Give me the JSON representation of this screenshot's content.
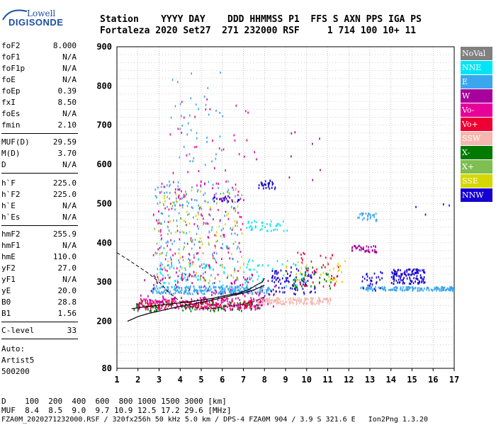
{
  "logo": {
    "top": "Lowell",
    "bottom": "DIGISONDE"
  },
  "header": {
    "labels": "Station    YYYY DAY    DDD HHMMSS P1  FFS S AXN PPS IGA PS",
    "values": "Fortaleza 2020 Set27  271 232000 RSF     1 714 100 10+ 11"
  },
  "params": [
    {
      "name": "foF2",
      "value": "8.000"
    },
    {
      "name": "foF1",
      "value": "N/A"
    },
    {
      "name": "foF1p",
      "value": "N/A"
    },
    {
      "name": "foE",
      "value": "N/A"
    },
    {
      "name": "foEp",
      "value": "0.39"
    },
    {
      "name": "fxI",
      "value": "8.50"
    },
    {
      "name": "foEs",
      "value": "N/A"
    },
    {
      "name": "fmin",
      "value": "2.10"
    },
    {
      "name": "MUF(D)",
      "value": "29.59"
    },
    {
      "name": "M(D)",
      "value": "3.70"
    },
    {
      "name": "D",
      "value": "N/A"
    },
    {
      "name": "h`F",
      "value": "225.0"
    },
    {
      "name": "h`F2",
      "value": "225.0"
    },
    {
      "name": "h`E",
      "value": "N/A"
    },
    {
      "name": "h`Es",
      "value": "N/A"
    },
    {
      "name": "hmF2",
      "value": "255.9"
    },
    {
      "name": "hmF1",
      "value": "N/A"
    },
    {
      "name": "hmE",
      "value": "110.0"
    },
    {
      "name": "yF2",
      "value": "27.0"
    },
    {
      "name": "yF1",
      "value": "N/A"
    },
    {
      "name": "yE",
      "value": "20.0"
    },
    {
      "name": "B0",
      "value": "28.8"
    },
    {
      "name": "B1",
      "value": "1.56"
    },
    {
      "name": "C-level",
      "value": "33"
    }
  ],
  "autoscaling": {
    "line1": "Auto:",
    "line2": "Artist5",
    "line3": "500200"
  },
  "legend": [
    {
      "label": "NoVal",
      "color": "#808080"
    },
    {
      "label": "NNE",
      "color": "#00e5f5"
    },
    {
      "label": "E",
      "color": "#3aa6ee"
    },
    {
      "label": "W",
      "color": "#a8009c"
    },
    {
      "label": "Vo-",
      "color": "#e8009a"
    },
    {
      "label": "Vo+",
      "color": "#ee0033"
    },
    {
      "label": "SSW",
      "color": "#f5b8b0"
    },
    {
      "label": "X-",
      "color": "#007a00"
    },
    {
      "label": "X+",
      "color": "#7fbe50"
    },
    {
      "label": "SSE",
      "color": "#d6d600"
    },
    {
      "label": "NNW",
      "color": "#1400d0"
    }
  ],
  "footer": {
    "distances": "D    100  200  400  600  800 1000 1500 3000 [km]",
    "muf": "MUF  8.4  8.5  9.0  9.7 10.9 12.5 17.2 29.6 [MHz]",
    "info": "FZA0M_2020271232000.RSF / 320fx256h 50 kHz 5.0 km / DPS-4 FZA0M 904 / 3.9 S 321.6 E   Ion2Png 1.3.20"
  },
  "chart_data": {
    "type": "scatter",
    "xlim": [
      1,
      17
    ],
    "ylim": [
      80,
      900
    ],
    "x_ticks": [
      1,
      2,
      3,
      4,
      5,
      6,
      7,
      8,
      9,
      10,
      11,
      12,
      13,
      14,
      15,
      16,
      17
    ],
    "y_ticks": [
      80,
      200,
      300,
      400,
      500,
      600,
      700,
      800,
      900
    ],
    "grid": true,
    "profile_line": [
      [
        1.5,
        200
      ],
      [
        2.0,
        212
      ],
      [
        2.5,
        220
      ],
      [
        3.0,
        226
      ],
      [
        3.5,
        232
      ],
      [
        4.0,
        238
      ],
      [
        4.5,
        243
      ],
      [
        5.0,
        248
      ],
      [
        5.5,
        254
      ],
      [
        6.0,
        260
      ],
      [
        6.5,
        266
      ],
      [
        7.0,
        272
      ],
      [
        7.5,
        280
      ],
      [
        8.0,
        292
      ]
    ],
    "trace_dashed": [
      [
        1.0,
        375
      ],
      [
        1.5,
        358
      ],
      [
        2.0,
        340
      ],
      [
        2.5,
        322
      ],
      [
        3.0,
        300
      ],
      [
        3.5,
        272
      ],
      [
        4.0,
        250
      ],
      [
        4.5,
        238
      ],
      [
        5.0,
        232
      ],
      [
        5.5,
        232
      ],
      [
        6.0,
        236
      ],
      [
        6.5,
        240
      ],
      [
        7.0,
        244
      ],
      [
        7.5,
        250
      ],
      [
        8.0,
        262
      ]
    ],
    "trace_f2": [
      [
        1.7,
        232
      ],
      [
        2.5,
        238
      ],
      [
        3.5,
        244
      ],
      [
        4.5,
        250
      ],
      [
        5.5,
        258
      ],
      [
        6.2,
        266
      ],
      [
        6.8,
        272
      ],
      [
        7.3,
        282
      ],
      [
        7.6,
        292
      ],
      [
        7.9,
        300
      ],
      [
        8.0,
        310
      ]
    ],
    "clusters": [
      {
        "color": "#3aa6ee",
        "x": [
          2.6,
          8.3
        ],
        "y": [
          272,
          292
        ],
        "n": 260
      },
      {
        "color": "#e8009a",
        "x": [
          1.9,
          8.0
        ],
        "y": [
          232,
          262
        ],
        "n": 220
      },
      {
        "color": "#ee0033",
        "x": [
          2.0,
          7.5
        ],
        "y": [
          236,
          256
        ],
        "n": 120
      },
      {
        "color": "#007a00",
        "x": [
          1.7,
          7.8
        ],
        "y": [
          228,
          250
        ],
        "n": 70
      },
      {
        "color": "#a8009c",
        "x": [
          2.0,
          8.5
        ],
        "y": [
          240,
          330
        ],
        "n": 120
      },
      {
        "color": "#f5b8b0",
        "x": [
          7.6,
          11.2
        ],
        "y": [
          246,
          262
        ],
        "n": 140
      },
      {
        "color": "#1400d0",
        "x": [
          8.3,
          10.4
        ],
        "y": [
          270,
          340
        ],
        "n": 90
      },
      {
        "color": "#1400d0",
        "x": [
          14.0,
          15.6
        ],
        "y": [
          298,
          335
        ],
        "n": 120
      },
      {
        "color": "#3aa6ee",
        "x": [
          12.5,
          17.0
        ],
        "y": [
          280,
          290
        ],
        "n": 150
      },
      {
        "color": "#1400d0",
        "x": [
          12.6,
          13.6
        ],
        "y": [
          280,
          330
        ],
        "n": 30
      },
      {
        "color": "#a8009c",
        "x": [
          12.1,
          13.3
        ],
        "y": [
          378,
          396
        ],
        "n": 40
      },
      {
        "color": "#3aa6ee",
        "x": [
          12.4,
          13.3
        ],
        "y": [
          458,
          478
        ],
        "n": 30
      },
      {
        "color": "#1400d0",
        "x": [
          7.7,
          8.5
        ],
        "y": [
          540,
          562
        ],
        "n": 30
      },
      {
        "color": "#1400d0",
        "x": [
          5.5,
          6.8
        ],
        "y": [
          508,
          522
        ],
        "n": 20
      },
      {
        "color": "#3aa6ee",
        "x": [
          2.7,
          6.8
        ],
        "y": [
          305,
          560
        ],
        "n": 170
      },
      {
        "color": "#e8009a",
        "x": [
          2.7,
          7.0
        ],
        "y": [
          300,
          560
        ],
        "n": 150
      },
      {
        "color": "#d6d600",
        "x": [
          2.7,
          7.0
        ],
        "y": [
          300,
          540
        ],
        "n": 70
      },
      {
        "color": "#7fbe50",
        "x": [
          2.7,
          7.0
        ],
        "y": [
          300,
          540
        ],
        "n": 60
      },
      {
        "color": "#00e5f5",
        "x": [
          7.1,
          9.1
        ],
        "y": [
          430,
          460
        ],
        "n": 40
      },
      {
        "color": "#00e5f5",
        "x": [
          3.0,
          10.0
        ],
        "y": [
          290,
          360
        ],
        "n": 80
      },
      {
        "color": "#ee0033",
        "x": [
          9.4,
          11.5
        ],
        "y": [
          290,
          380
        ],
        "n": 40
      },
      {
        "color": "#007a00",
        "x": [
          9.3,
          11.2
        ],
        "y": [
          280,
          340
        ],
        "n": 30
      },
      {
        "color": "#d6d600",
        "x": [
          9.0,
          11.8
        ],
        "y": [
          300,
          360
        ],
        "n": 30
      },
      {
        "color": "#3aa6ee",
        "x": [
          3.5,
          6.0
        ],
        "y": [
          600,
          840
        ],
        "n": 40
      },
      {
        "color": "#e8009a",
        "x": [
          3.5,
          7.8
        ],
        "y": [
          580,
          780
        ],
        "n": 30
      },
      {
        "color": "#a8009c",
        "x": [
          8.8,
          11.2
        ],
        "y": [
          560,
          700
        ],
        "n": 8
      },
      {
        "color": "#1400d0",
        "x": [
          15.0,
          16.8
        ],
        "y": [
          470,
          520
        ],
        "n": 4
      }
    ]
  }
}
